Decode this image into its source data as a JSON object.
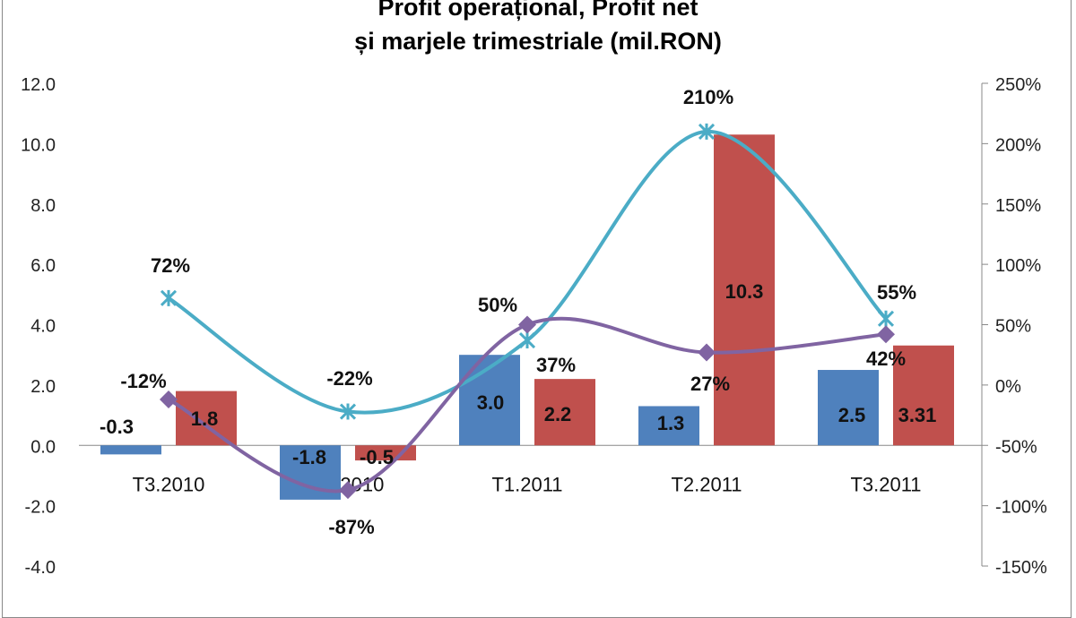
{
  "chart_data": {
    "type": "bar+line",
    "title_line1": "Profit operațional, Profit net",
    "title_line2": "și marjele trimestriale (mil.RON)",
    "categories": [
      "T3.2010",
      "T4.2010",
      "T1.2011",
      "T2.2011",
      "T3.2011"
    ],
    "y_left": {
      "range": [
        -4,
        12
      ],
      "ticks": [
        "-4.0",
        "-2.0",
        "0.0",
        "2.0",
        "4.0",
        "6.0",
        "8.0",
        "10.0",
        "12.0"
      ]
    },
    "y_right": {
      "range": [
        -150,
        250
      ],
      "ticks": [
        "-150%",
        "-100%",
        "-50%",
        "0%",
        "50%",
        "100%",
        "150%",
        "200%",
        "250%"
      ]
    },
    "grid": false,
    "series": [
      {
        "kind": "bar",
        "axis": "left",
        "color": "#4f81bd",
        "values": [
          -0.3,
          -1.8,
          3.0,
          1.3,
          2.5
        ],
        "labels": [
          "-0.3",
          "-1.8",
          "3.0",
          "1.3",
          "2.5"
        ]
      },
      {
        "kind": "bar",
        "axis": "left",
        "color": "#c0504d",
        "values": [
          1.8,
          -0.5,
          2.2,
          10.3,
          3.31
        ],
        "labels": [
          "1.8",
          "-0.5",
          "2.2",
          "10.3",
          "3.31"
        ]
      },
      {
        "kind": "line",
        "axis": "right",
        "marker": "star",
        "color": "#4bacc6",
        "values": [
          72,
          -22,
          37,
          210,
          55
        ],
        "labels": [
          "72%",
          "-22%",
          "37%",
          "210%",
          "55%"
        ]
      },
      {
        "kind": "line",
        "axis": "right",
        "marker": "diamond",
        "color": "#8064a2",
        "values": [
          -12,
          -87,
          50,
          27,
          42
        ],
        "labels": [
          "-12%",
          "-87%",
          "50%",
          "27%",
          "42%"
        ]
      }
    ]
  }
}
